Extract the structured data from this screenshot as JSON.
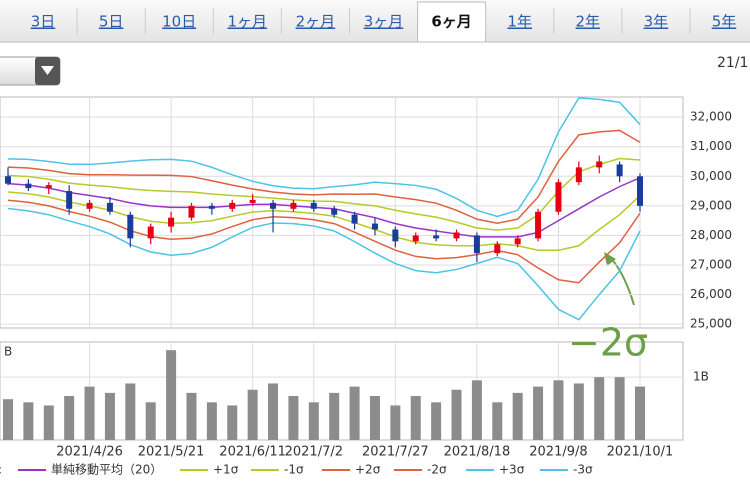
{
  "tabs": [
    "3日",
    "5日",
    "10日",
    "1ヶ月",
    "2ヶ月",
    "3ヶ月",
    "6ヶ月",
    "1年",
    "2年",
    "3年",
    "5年"
  ],
  "selected_tab_index": 6,
  "date_label": "21/1",
  "legend_prefix": ":",
  "chart_data": [
    {
      "type": "candlestick",
      "categories": [
        null,
        null,
        null,
        null,
        "2021/4/26",
        null,
        null,
        null,
        "2021/5/21",
        null,
        null,
        null,
        "2021/6/11",
        null,
        null,
        "2021/7/2",
        null,
        null,
        null,
        "2021/7/27",
        null,
        null,
        null,
        "2021/8/18",
        null,
        null,
        null,
        "2021/9/8",
        null,
        null,
        null,
        "2021/10/1"
      ],
      "ohlc": [
        [
          30000,
          30300,
          29700,
          29750
        ],
        [
          29750,
          29900,
          29500,
          29600
        ],
        [
          29600,
          29800,
          29400,
          29700
        ],
        [
          29500,
          29700,
          28700,
          28900
        ],
        [
          28900,
          29200,
          28800,
          29100
        ],
        [
          29100,
          29300,
          28700,
          28800
        ],
        [
          28700,
          28800,
          27600,
          27900
        ],
        [
          27900,
          28400,
          27700,
          28300
        ],
        [
          28300,
          28800,
          28100,
          28600
        ],
        [
          28600,
          29100,
          28500,
          29000
        ],
        [
          29000,
          29100,
          28700,
          28900
        ],
        [
          28900,
          29200,
          28800,
          29100
        ],
        [
          29100,
          29400,
          29000,
          29200
        ],
        [
          29100,
          29200,
          28100,
          28900
        ],
        [
          28900,
          29200,
          28800,
          29100
        ],
        [
          29100,
          29200,
          28800,
          28900
        ],
        [
          28900,
          29000,
          28600,
          28700
        ],
        [
          28700,
          28800,
          28200,
          28400
        ],
        [
          28400,
          28600,
          28000,
          28200
        ],
        [
          28200,
          28300,
          27600,
          27800
        ],
        [
          27800,
          28100,
          27700,
          28000
        ],
        [
          28000,
          28200,
          27800,
          27900
        ],
        [
          27900,
          28200,
          27800,
          28100
        ],
        [
          28000,
          28100,
          27100,
          27400
        ],
        [
          27400,
          27800,
          27300,
          27700
        ],
        [
          27700,
          28000,
          27600,
          27900
        ],
        [
          27900,
          28900,
          27800,
          28800
        ],
        [
          28800,
          29900,
          28700,
          29800
        ],
        [
          29800,
          30500,
          29700,
          30300
        ],
        [
          30300,
          30700,
          30100,
          30500
        ],
        [
          30400,
          30500,
          29800,
          30000
        ],
        [
          30000,
          30100,
          28800,
          29000
        ]
      ],
      "up_color": "#e60012",
      "down_color": "#1a3c9c",
      "series": [
        {
          "name": "単純移動平均（20）",
          "color": "#9933cc",
          "values": [
            29750,
            29700,
            29600,
            29450,
            29350,
            29250,
            29100,
            29000,
            28950,
            28950,
            28950,
            29000,
            29050,
            29050,
            29000,
            28950,
            28900,
            28750,
            28600,
            28400,
            28250,
            28150,
            28050,
            27950,
            27950,
            27950,
            28100,
            28500,
            28900,
            29300,
            29650,
            29950
          ]
        },
        {
          "name": "+1σ",
          "color": "#b8c92a",
          "values": [
            30030,
            29990,
            29900,
            29770,
            29700,
            29650,
            29570,
            29520,
            29490,
            29470,
            29400,
            29350,
            29310,
            29260,
            29200,
            29160,
            29150,
            29070,
            29000,
            28850,
            28730,
            28620,
            28450,
            28250,
            28180,
            28250,
            28700,
            29500,
            30150,
            30400,
            30600,
            30550
          ]
        },
        {
          "name": "-1σ",
          "color": "#b8c92a",
          "values": [
            29470,
            29410,
            29300,
            29130,
            29000,
            28850,
            28630,
            28480,
            28410,
            28430,
            28500,
            28650,
            28790,
            28840,
            28800,
            28740,
            28650,
            28430,
            28200,
            27950,
            27770,
            27680,
            27650,
            27650,
            27720,
            27650,
            27500,
            27500,
            27650,
            28200,
            28700,
            29350
          ]
        },
        {
          "name": "+2σ",
          "color": "#e06040",
          "values": [
            30310,
            30280,
            30200,
            30090,
            30050,
            30050,
            30040,
            30040,
            30030,
            29990,
            29850,
            29700,
            29570,
            29470,
            29400,
            29370,
            29400,
            29390,
            29400,
            29300,
            29210,
            29090,
            28850,
            28550,
            28410,
            28550,
            29300,
            30500,
            31400,
            31500,
            31550,
            31150
          ]
        },
        {
          "name": "-2σ",
          "color": "#e06040",
          "values": [
            29190,
            29120,
            29000,
            28810,
            28650,
            28450,
            28160,
            27960,
            27870,
            27910,
            28050,
            28300,
            28530,
            28630,
            28600,
            28530,
            28400,
            28110,
            27800,
            27500,
            27290,
            27210,
            27250,
            27350,
            27490,
            27350,
            26900,
            26500,
            26400,
            27100,
            27750,
            28750
          ]
        },
        {
          "name": "+3σ",
          "color": "#4cc4e4",
          "values": [
            30590,
            30570,
            30500,
            30410,
            30400,
            30450,
            30510,
            30560,
            30570,
            30510,
            30300,
            30050,
            29830,
            29680,
            29600,
            29580,
            29650,
            29710,
            29800,
            29750,
            29690,
            29560,
            29250,
            28850,
            28640,
            28850,
            29900,
            31500,
            32650,
            32600,
            32500,
            31750
          ]
        },
        {
          "name": "-3σ",
          "color": "#4cc4e4",
          "values": [
            28910,
            28830,
            28700,
            28490,
            28300,
            28050,
            27690,
            27440,
            27330,
            27390,
            27600,
            27950,
            28270,
            28420,
            28400,
            28320,
            28150,
            27790,
            27400,
            27050,
            26810,
            26740,
            26850,
            27050,
            27260,
            27050,
            26300,
            25500,
            25150,
            26000,
            26800,
            28150
          ]
        }
      ],
      "ylim": [
        24870,
        32680
      ],
      "yticks": [
        {
          "value": 25000,
          "label": "25,000"
        },
        {
          "value": 26000,
          "label": "26,000"
        },
        {
          "value": 27000,
          "label": "27,000"
        },
        {
          "value": 28000,
          "label": "28,000"
        },
        {
          "value": 29000,
          "label": "29,000"
        },
        {
          "value": 30000,
          "label": "30,000"
        },
        {
          "value": 31000,
          "label": "31,000"
        },
        {
          "value": 32000,
          "label": "32,000"
        }
      ],
      "grid": true,
      "annotation": "−2σ",
      "annotation_color": "#6ca048"
    },
    {
      "type": "bar",
      "unit_label": "B",
      "values": [
        0.65,
        0.6,
        0.55,
        0.7,
        0.85,
        0.75,
        0.9,
        0.6,
        1.43,
        0.75,
        0.6,
        0.55,
        0.8,
        0.9,
        0.7,
        0.6,
        0.75,
        0.85,
        0.7,
        0.55,
        0.7,
        0.6,
        0.8,
        0.95,
        0.6,
        0.75,
        0.85,
        0.95,
        0.9,
        1.0,
        1.0,
        0.85
      ],
      "color": "#8c8c8c",
      "ylim": [
        0,
        1.56
      ],
      "yticks": [
        {
          "value": 1,
          "label": "1B"
        }
      ],
      "grid": true
    }
  ]
}
